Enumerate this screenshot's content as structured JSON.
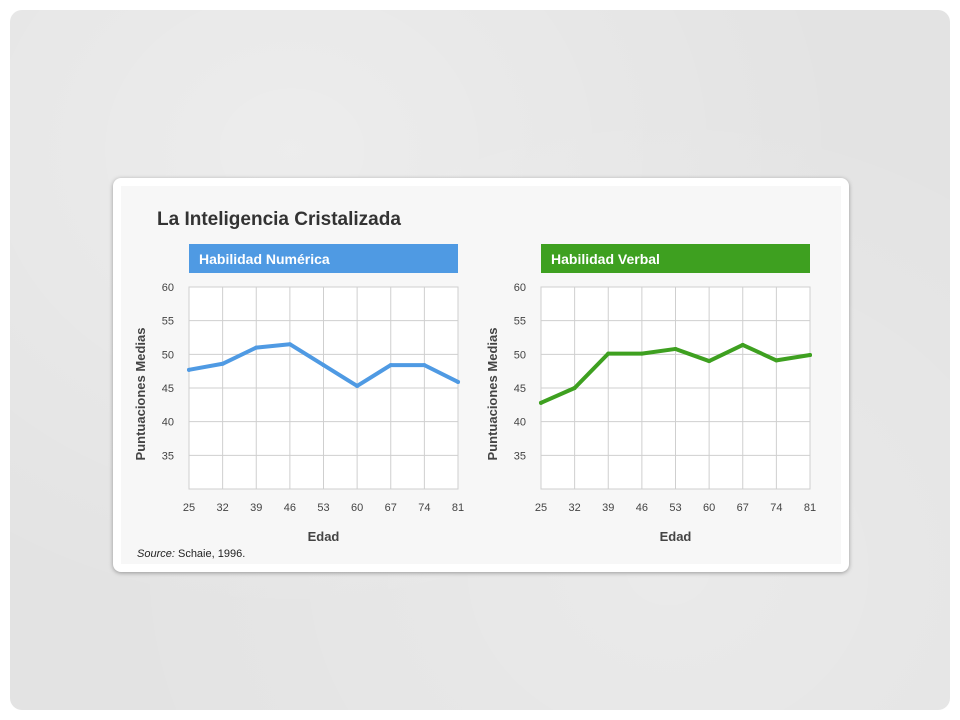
{
  "title": "La Inteligencia Cristalizada",
  "source_label": "Source:",
  "source_text": " Schaie, 1996.",
  "chart_data": [
    {
      "type": "line",
      "title": "Habilidad Numérica",
      "color": "#4f9ae3",
      "xlabel": "Edad",
      "ylabel": "Puntuaciones Medias",
      "categories": [
        "25",
        "32",
        "39",
        "46",
        "53",
        "60",
        "67",
        "74",
        "81"
      ],
      "y_ticks": [
        35,
        40,
        45,
        50,
        55,
        60
      ],
      "ylim": [
        30,
        60
      ],
      "grid": true,
      "values": [
        47.7,
        48.6,
        51.0,
        51.5,
        48.4,
        45.3,
        48.4,
        48.4,
        45.9
      ]
    },
    {
      "type": "line",
      "title": "Habilidad Verbal",
      "color": "#3ea020",
      "xlabel": "Edad",
      "ylabel": "Puntuaciones Medias",
      "categories": [
        "25",
        "32",
        "39",
        "46",
        "53",
        "60",
        "67",
        "74",
        "81"
      ],
      "y_ticks": [
        35,
        40,
        45,
        50,
        55,
        60
      ],
      "ylim": [
        30,
        60
      ],
      "grid": true,
      "values": [
        42.8,
        45.0,
        50.1,
        50.1,
        50.8,
        49.0,
        51.4,
        49.1,
        49.9
      ]
    }
  ]
}
